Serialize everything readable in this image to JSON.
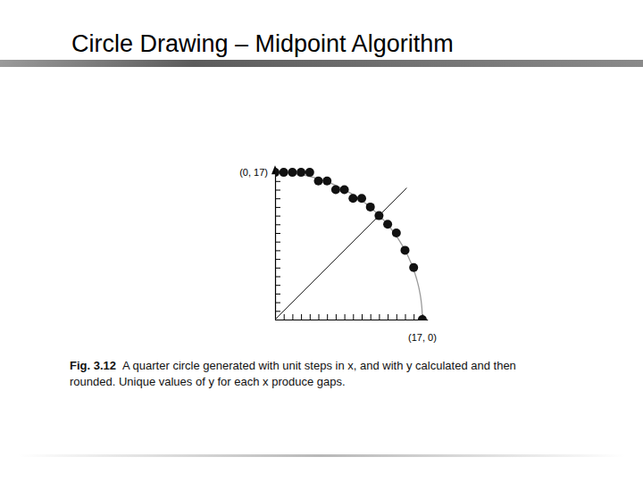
{
  "chart_data": {
    "type": "scatter",
    "title": "Circle Drawing – Midpoint Algorithm",
    "x": [
      0,
      1,
      2,
      3,
      4,
      5,
      6,
      7,
      8,
      9,
      10,
      11,
      12,
      13,
      14,
      15,
      16,
      17
    ],
    "values": [
      17,
      17,
      17,
      17,
      17,
      16,
      16,
      15,
      15,
      14,
      14,
      13,
      12,
      11,
      10,
      8,
      6,
      0
    ],
    "color": "#111111",
    "marker": "circle",
    "xlim": [
      0,
      17.6
    ],
    "ylim": [
      0,
      17.6
    ],
    "xticks": [
      0,
      1,
      2,
      3,
      4,
      5,
      6,
      7,
      8,
      9,
      10,
      11,
      12,
      13,
      14,
      15,
      16,
      17
    ],
    "yticks": [
      0,
      1,
      2,
      3,
      4,
      5,
      6,
      7,
      8,
      9,
      10,
      11,
      12,
      13,
      14,
      15,
      16,
      17
    ],
    "tick_labels": false,
    "grid": false,
    "reference_circle": {
      "radius": 17
    },
    "reference_line": {
      "x": [
        0,
        15.2
      ],
      "y": [
        0,
        15.2
      ]
    },
    "annotations": [
      {
        "text": "(0, 17)",
        "x": 0,
        "y": 17
      },
      {
        "text": "(17, 0)",
        "x": 17,
        "y": 0
      }
    ],
    "figure_label": "Fig. 3.12",
    "caption": [
      "A quarter circle generated with unit steps in x, and with y calculated and then",
      "rounded. Unique values of y for each x produce gaps."
    ]
  }
}
